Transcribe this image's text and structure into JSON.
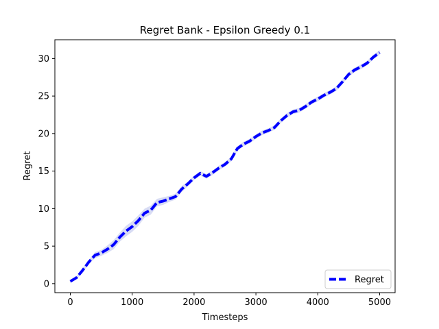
{
  "chart_data": {
    "type": "line",
    "title": "Regret Bank - Epsilon Greedy 0.1",
    "xlabel": "Timesteps",
    "ylabel": "Regret",
    "xlim": [
      -250,
      5250
    ],
    "ylim": [
      -1.2,
      32.5
    ],
    "xticks": [
      0,
      1000,
      2000,
      3000,
      4000,
      5000
    ],
    "yticks": [
      0,
      5,
      10,
      15,
      20,
      25,
      30
    ],
    "grid": false,
    "legend": {
      "placement": "lower-right",
      "entries": [
        "Regret"
      ]
    },
    "colors": {
      "line": "#0000ff",
      "band": "#c8cdf0"
    },
    "series": [
      {
        "name": "Regret",
        "x": [
          0,
          100,
          200,
          300,
          400,
          500,
          600,
          700,
          800,
          900,
          1000,
          1100,
          1200,
          1300,
          1400,
          1500,
          1600,
          1700,
          1800,
          1900,
          2000,
          2100,
          2200,
          2300,
          2400,
          2500,
          2600,
          2700,
          2800,
          2900,
          3000,
          3100,
          3200,
          3300,
          3400,
          3500,
          3600,
          3700,
          3800,
          3900,
          4000,
          4100,
          4200,
          4300,
          4400,
          4500,
          4600,
          4700,
          4800,
          4900,
          5000
        ],
        "y": [
          0.3,
          0.8,
          1.8,
          2.9,
          3.8,
          4.1,
          4.6,
          5.2,
          6.2,
          7.0,
          7.6,
          8.4,
          9.4,
          9.8,
          10.8,
          11.0,
          11.3,
          11.6,
          12.6,
          13.3,
          14.1,
          14.7,
          14.3,
          14.8,
          15.4,
          15.9,
          16.6,
          18.0,
          18.6,
          19.0,
          19.6,
          20.1,
          20.4,
          20.8,
          21.7,
          22.4,
          22.9,
          23.1,
          23.6,
          24.2,
          24.6,
          25.1,
          25.5,
          26.0,
          26.9,
          27.9,
          28.5,
          28.9,
          29.4,
          30.2,
          30.8
        ],
        "band": [
          0.2,
          0.2,
          0.3,
          0.3,
          0.4,
          0.4,
          0.5,
          0.6,
          0.6,
          0.7,
          0.7,
          0.7,
          0.6,
          0.6,
          0.5,
          0.5,
          0.4,
          0.4,
          0.4,
          0.3,
          0.3,
          0.3,
          0.3,
          0.3,
          0.3,
          0.3,
          0.3,
          0.3,
          0.3,
          0.3,
          0.3,
          0.3,
          0.3,
          0.3,
          0.3,
          0.3,
          0.3,
          0.3,
          0.3,
          0.3,
          0.3,
          0.3,
          0.3,
          0.3,
          0.3,
          0.3,
          0.3,
          0.3,
          0.3,
          0.3,
          0.3
        ]
      }
    ]
  }
}
